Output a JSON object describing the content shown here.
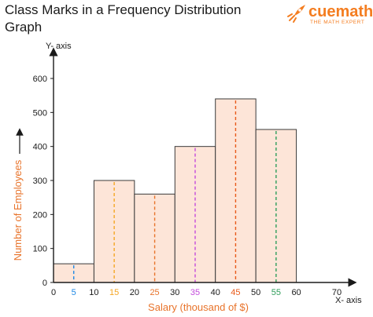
{
  "title": "Class Marks in a Frequency Distribution Graph",
  "logo": {
    "name": "cuemath",
    "tagline": "THE MATH EXPERT",
    "icon": "rocket-icon"
  },
  "chart_data": {
    "type": "bar",
    "title": "Class Marks in a Frequency Distribution Graph",
    "xlabel": "Salary (thousand of $)",
    "ylabel": "Number of Employees",
    "x_axis_name": "X- axis",
    "y_axis_name": "Y- axis",
    "xlim": [
      0,
      70
    ],
    "ylim": [
      0,
      600
    ],
    "x_ticks": [
      0,
      5,
      10,
      15,
      20,
      25,
      30,
      35,
      40,
      45,
      50,
      55,
      60,
      70
    ],
    "y_ticks": [
      0,
      100,
      200,
      300,
      400,
      500,
      600
    ],
    "grid": false,
    "bins": [
      {
        "start": 0,
        "end": 10,
        "value": 55,
        "class_mark": 5,
        "color": "#1e88e5"
      },
      {
        "start": 10,
        "end": 20,
        "value": 300,
        "class_mark": 15,
        "color": "#f5a623"
      },
      {
        "start": 20,
        "end": 30,
        "value": 260,
        "class_mark": 25,
        "color": "#e8732a"
      },
      {
        "start": 30,
        "end": 40,
        "value": 400,
        "class_mark": 35,
        "color": "#c44bdc"
      },
      {
        "start": 40,
        "end": 50,
        "value": 540,
        "class_mark": 45,
        "color": "#e85a1a"
      },
      {
        "start": 50,
        "end": 60,
        "value": 450,
        "class_mark": 55,
        "color": "#2e9d5a"
      }
    ],
    "colors": {
      "bar_fill": "#fde5d8",
      "bar_stroke": "#3a3a3a",
      "axis": "#1a1a1a",
      "label": "#e8732a"
    }
  }
}
